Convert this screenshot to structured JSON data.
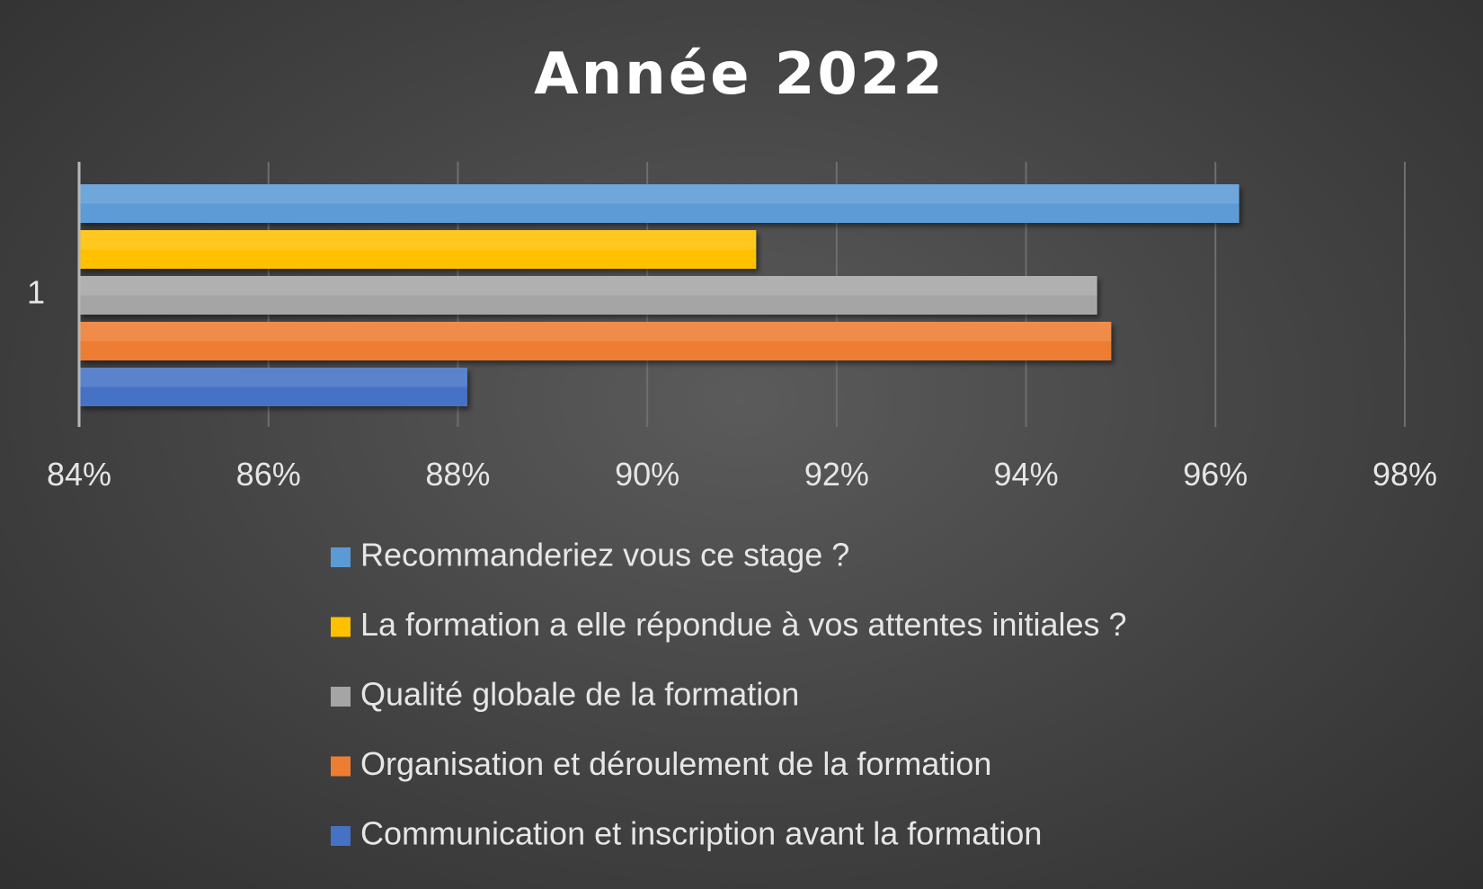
{
  "chart_data": {
    "type": "bar",
    "orientation": "horizontal",
    "title": "Année 2022",
    "categories": [
      "1"
    ],
    "series": [
      {
        "name": "Recommanderiez vous ce stage ?",
        "values": [
          96.25
        ],
        "color": "#5b9bd5"
      },
      {
        "name": "La formation a elle répondue à vos attentes initiales ?",
        "values": [
          91.15
        ],
        "color": "#ffc000"
      },
      {
        "name": "Qualité globale de la formation",
        "values": [
          94.75
        ],
        "color": "#a5a5a5"
      },
      {
        "name": "Organisation et déroulement de la formation",
        "values": [
          94.9
        ],
        "color": "#ed7d31"
      },
      {
        "name": "Communication et inscription avant la formation",
        "values": [
          88.1
        ],
        "color": "#4472c4"
      }
    ],
    "xlim": [
      84,
      98
    ],
    "x_ticks": [
      84,
      86,
      88,
      90,
      92,
      94,
      96,
      98
    ],
    "tick_labels": [
      "84%",
      "86%",
      "88%",
      "90%",
      "92%",
      "94%",
      "96%",
      "98%"
    ],
    "grid": true,
    "legend_position": "bottom"
  },
  "colors": {
    "background": "#474747",
    "text": "#e6e6e6",
    "gridline": "#6e6e6e"
  }
}
